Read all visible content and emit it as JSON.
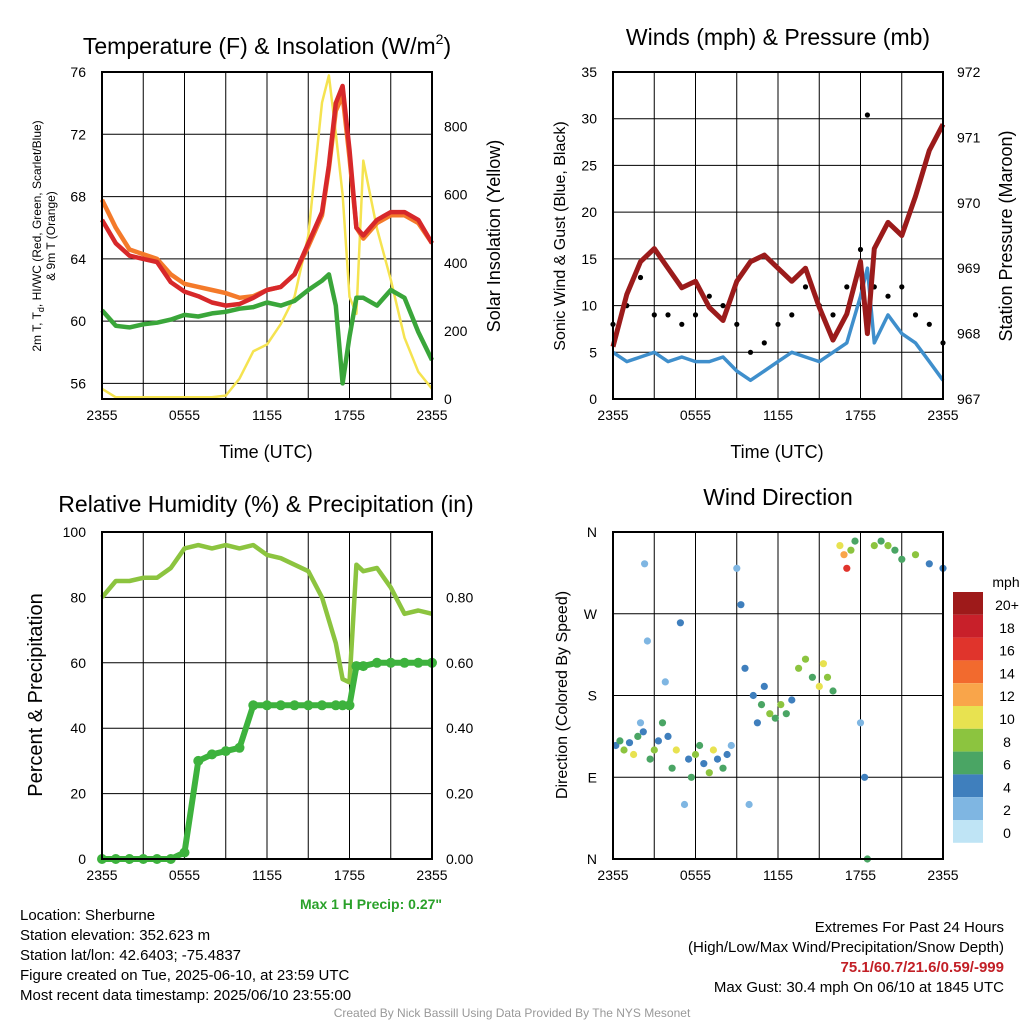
{
  "panels": {
    "temperature": {
      "title": "Temperature (F) & Insolation (W/m",
      "title_sup": "2",
      "title_close": ")",
      "xlabel": "Time (UTC)",
      "ylabel_line1": "2m T, T",
      "ylabel_sub": "d",
      "ylabel_line1_rest": ", HI/WC (Red, Green, Scarlet/Blue)",
      "ylabel_line2": "& 9m T (Orange)",
      "ylabel_right": "Solar Insolation (Yellow)",
      "xticks": [
        "2355",
        "0555",
        "1155",
        "1755",
        "2355"
      ],
      "yticks_left": [
        "56",
        "60",
        "64",
        "68",
        "72",
        "76"
      ],
      "yticks_right": [
        "0",
        "200",
        "400",
        "600",
        "800"
      ]
    },
    "winds": {
      "title": "Winds (mph) & Pressure (mb)",
      "xlabel": "Time (UTC)",
      "ylabel_left": "Sonic Wind & Gust (Blue, Black)",
      "ylabel_right": "Station Pressure (Maroon)",
      "xticks": [
        "2355",
        "0555",
        "1155",
        "1755",
        "2355"
      ],
      "yticks_left": [
        "0",
        "5",
        "10",
        "15",
        "20",
        "25",
        "30",
        "35"
      ],
      "yticks_right": [
        "967",
        "968",
        "969",
        "970",
        "971",
        "972"
      ]
    },
    "humidity": {
      "title": "Relative Humidity (%) & Precipitation (in)",
      "ylabel": "Percent & Precipitation",
      "xticks": [
        "2355",
        "0555",
        "1155",
        "1755",
        "2355"
      ],
      "yticks_left": [
        "0",
        "20",
        "40",
        "60",
        "80",
        "100"
      ],
      "yticks_right": [
        "0.00",
        "0.20",
        "0.40",
        "0.60",
        "0.80"
      ],
      "max_precip": "Max 1 H Precip: 0.27\""
    },
    "direction": {
      "title": "Wind Direction",
      "ylabel": "Direction (Colored By Speed)",
      "xticks": [
        "2355",
        "0555",
        "1155",
        "1755",
        "2355"
      ],
      "yticks": [
        "N",
        "E",
        "S",
        "W",
        "N"
      ],
      "legend_title": "mph",
      "legend_labels": [
        "20+",
        "18",
        "16",
        "14",
        "12",
        "10",
        "8",
        "6",
        "4",
        "2",
        "0"
      ],
      "legend_colors": [
        "#9e1a1a",
        "#c8202a",
        "#e0342c",
        "#f26a2e",
        "#f9a54a",
        "#e8e250",
        "#8cc43f",
        "#4aa564",
        "#3f7fbd",
        "#7fb6e2",
        "#bfe4f5"
      ]
    }
  },
  "info": {
    "location": "Location: Sherburne",
    "elevation": "Station elevation: 352.623 m",
    "latlon": "Station lat/lon: 42.6403; -75.4837",
    "created": "Figure created on Tue, 2025-06-10, at 23:59 UTC",
    "recent": "Most recent data timestamp: 2025/06/10 23:55:00"
  },
  "extremes": {
    "heading": "Extremes For Past 24 Hours",
    "subheading": "(High/Low/Max Wind/Precipitation/Snow Depth)",
    "values": "75.1/60.7/21.6/0.59/-999",
    "max_gust": "Max Gust: 30.4 mph On 06/10 at 1845 UTC"
  },
  "credit": "Created By Nick Bassill Using Data Provided By The NYS Mesonet",
  "chart_data": [
    {
      "type": "line",
      "title": "Temperature (F) & Insolation (W/m2)",
      "xlabel": "Time (UTC)",
      "ylabel": "2m T, Td, HI/WC (Red, Green, Scarlet/Blue) & 9m T (Orange)",
      "ylabel_right": "Solar Insolation (Yellow)",
      "x_hours": [
        0,
        1,
        2,
        3,
        4,
        5,
        6,
        7,
        8,
        9,
        10,
        11,
        12,
        13,
        14,
        15,
        16,
        16.5,
        17,
        17.5,
        18,
        18.5,
        19,
        20,
        21,
        22,
        23,
        24
      ],
      "ylim": [
        55,
        76
      ],
      "ylim_right": [
        0,
        960
      ],
      "series": [
        {
          "name": "2m T",
          "color": "#d7282a",
          "axis": "left",
          "values": [
            66.5,
            65,
            64.2,
            64,
            63.8,
            62.5,
            61.9,
            61.6,
            61.2,
            61,
            61.1,
            61.5,
            62,
            62.2,
            63,
            65,
            67,
            70,
            74,
            75.1,
            71,
            66,
            65.5,
            66.5,
            67,
            67,
            66.5,
            65
          ]
        },
        {
          "name": "9m T",
          "color": "#f47a2a",
          "axis": "left",
          "values": [
            67.8,
            66,
            64.6,
            64.3,
            64,
            63,
            62.4,
            62.2,
            62,
            61.8,
            61.5,
            61.6,
            62,
            62.2,
            63,
            64.8,
            66.8,
            69.8,
            73.5,
            74.5,
            70.5,
            66,
            65.3,
            66.3,
            66.8,
            66.8,
            66.3,
            65
          ]
        },
        {
          "name": "Td",
          "color": "#3aa63a",
          "axis": "left",
          "values": [
            60.7,
            59.7,
            59.6,
            59.8,
            59.9,
            60.1,
            60.4,
            60.3,
            60.5,
            60.6,
            60.8,
            60.9,
            61.2,
            61,
            61.3,
            62,
            62.6,
            63,
            61,
            56,
            59,
            61.5,
            61.5,
            61,
            62,
            61.5,
            59.3,
            57.5
          ]
        },
        {
          "name": "Insolation",
          "color": "#f5e350",
          "axis": "right",
          "values": [
            30,
            5,
            5,
            5,
            5,
            5,
            5,
            5,
            5,
            10,
            60,
            140,
            160,
            220,
            300,
            480,
            870,
            950,
            780,
            600,
            300,
            250,
            700,
            500,
            350,
            180,
            80,
            30
          ]
        }
      ]
    },
    {
      "type": "line",
      "title": "Winds (mph) & Pressure (mb)",
      "xlabel": "Time (UTC)",
      "ylabel": "Sonic Wind & Gust (Blue, Black)",
      "ylabel_right": "Station Pressure (Maroon)",
      "x_hours": [
        0,
        1,
        2,
        3,
        4,
        5,
        6,
        7,
        8,
        9,
        10,
        11,
        12,
        13,
        14,
        15,
        16,
        17,
        18,
        18.5,
        19,
        20,
        21,
        22,
        23,
        24
      ],
      "ylim": [
        0,
        35
      ],
      "ylim_right": [
        967,
        972
      ],
      "series": [
        {
          "name": "Wind",
          "color": "#3f8fcc",
          "axis": "left",
          "values": [
            5,
            4,
            4.5,
            5,
            4,
            4.5,
            4,
            4,
            4.5,
            3,
            2,
            3,
            4,
            5,
            4.5,
            4,
            5,
            6,
            11,
            14,
            6,
            9,
            7,
            6,
            4,
            2
          ]
        },
        {
          "name": "Gust",
          "color": "#000000",
          "axis": "left",
          "values": [
            8,
            10,
            13,
            9,
            9,
            8,
            9,
            11,
            10,
            8,
            5,
            6,
            8,
            9,
            12,
            10,
            9,
            12,
            16,
            30.4,
            12,
            11,
            12,
            9,
            8,
            6
          ]
        },
        {
          "name": "Pressure",
          "color": "#9b1b1b",
          "axis": "right",
          "values": [
            967.8,
            968.6,
            969.1,
            969.3,
            969.0,
            968.7,
            968.8,
            968.4,
            968.2,
            968.8,
            969.1,
            969.2,
            969.0,
            968.8,
            969.0,
            968.4,
            967.9,
            968.3,
            969.1,
            968.0,
            969.3,
            969.7,
            969.5,
            970.1,
            970.8,
            971.2
          ]
        }
      ]
    },
    {
      "type": "line",
      "title": "Relative Humidity (%) & Precipitation (in)",
      "ylabel": "Percent & Precipitation",
      "x_hours": [
        0,
        1,
        2,
        3,
        4,
        5,
        6,
        7,
        8,
        9,
        10,
        11,
        12,
        13,
        14,
        15,
        16,
        17,
        17.5,
        18,
        18.5,
        19,
        20,
        21,
        22,
        23,
        24
      ],
      "ylim": [
        0,
        100
      ],
      "ylim_right": [
        0,
        1.0
      ],
      "series": [
        {
          "name": "RH",
          "color": "#8cc43f",
          "axis": "left",
          "values": [
            80,
            85,
            85,
            86,
            86,
            89,
            95,
            96,
            95,
            96,
            95,
            96,
            93,
            92,
            90,
            88,
            80,
            66,
            55,
            54,
            90,
            88,
            89,
            83,
            75,
            76,
            75
          ]
        },
        {
          "name": "Precip",
          "color": "#3db23d",
          "axis": "right",
          "values": [
            0,
            0,
            0,
            0,
            0,
            0,
            0.02,
            0.3,
            0.32,
            0.33,
            0.34,
            0.47,
            0.47,
            0.47,
            0.47,
            0.47,
            0.47,
            0.47,
            0.47,
            0.47,
            0.59,
            0.59,
            0.6,
            0.6,
            0.6,
            0.6,
            0.6
          ]
        }
      ]
    },
    {
      "type": "scatter",
      "title": "Wind Direction",
      "ylabel": "Direction (Colored By Speed)",
      "yticks": [
        "N",
        "E",
        "S",
        "W",
        "N"
      ],
      "ylim_deg": [
        0,
        360
      ],
      "points_hours_deg_mph": [
        [
          0.2,
          125,
          4
        ],
        [
          0.5,
          130,
          6
        ],
        [
          0.8,
          120,
          8
        ],
        [
          1.2,
          128,
          3
        ],
        [
          1.5,
          115,
          9
        ],
        [
          1.8,
          135,
          5
        ],
        [
          2.0,
          150,
          2
        ],
        [
          2.2,
          140,
          4
        ],
        [
          2.3,
          325,
          1
        ],
        [
          2.5,
          240,
          2
        ],
        [
          2.7,
          110,
          6
        ],
        [
          3.0,
          120,
          8
        ],
        [
          3.3,
          130,
          3
        ],
        [
          3.6,
          150,
          5
        ],
        [
          3.8,
          195,
          2
        ],
        [
          4.0,
          135,
          4
        ],
        [
          4.3,
          100,
          6
        ],
        [
          4.6,
          120,
          9
        ],
        [
          4.9,
          260,
          3
        ],
        [
          5.2,
          60,
          2
        ],
        [
          5.5,
          110,
          4
        ],
        [
          5.7,
          90,
          6
        ],
        [
          6.0,
          115,
          8
        ],
        [
          6.3,
          125,
          5
        ],
        [
          6.6,
          105,
          3
        ],
        [
          7.0,
          95,
          7
        ],
        [
          7.3,
          120,
          9
        ],
        [
          7.6,
          110,
          4
        ],
        [
          8.0,
          100,
          6
        ],
        [
          8.3,
          115,
          3
        ],
        [
          8.6,
          125,
          2
        ],
        [
          9.0,
          320,
          2
        ],
        [
          9.3,
          280,
          3
        ],
        [
          9.6,
          210,
          4
        ],
        [
          9.9,
          60,
          1
        ],
        [
          10.2,
          180,
          4
        ],
        [
          10.5,
          150,
          3
        ],
        [
          10.8,
          170,
          6
        ],
        [
          11.0,
          190,
          4
        ],
        [
          11.4,
          160,
          7
        ],
        [
          11.8,
          155,
          5
        ],
        [
          12.2,
          170,
          8
        ],
        [
          12.6,
          160,
          6
        ],
        [
          13.0,
          175,
          4
        ],
        [
          13.5,
          210,
          7
        ],
        [
          14.0,
          220,
          8
        ],
        [
          14.5,
          200,
          6
        ],
        [
          15.0,
          190,
          9
        ],
        [
          15.3,
          215,
          10
        ],
        [
          15.6,
          200,
          7
        ],
        [
          16.0,
          185,
          6
        ],
        [
          16.5,
          345,
          9
        ],
        [
          16.8,
          335,
          12
        ],
        [
          17.0,
          320,
          16
        ],
        [
          17.3,
          340,
          8
        ],
        [
          17.6,
          350,
          6
        ],
        [
          18.0,
          150,
          2
        ],
        [
          18.3,
          90,
          3
        ],
        [
          18.5,
          0,
          6
        ],
        [
          19.0,
          345,
          7
        ],
        [
          19.5,
          350,
          6
        ],
        [
          20.0,
          345,
          8
        ],
        [
          20.5,
          340,
          5
        ],
        [
          21.0,
          330,
          6
        ],
        [
          22.0,
          335,
          7
        ],
        [
          23.0,
          325,
          4
        ],
        [
          24.0,
          320,
          4
        ]
      ]
    }
  ]
}
